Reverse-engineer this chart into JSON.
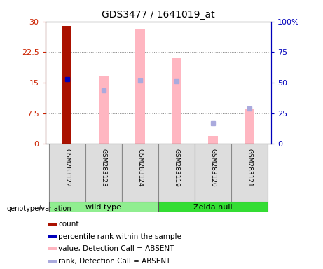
{
  "title": "GDS3477 / 1641019_at",
  "samples": [
    "GSM283122",
    "GSM283123",
    "GSM283124",
    "GSM283119",
    "GSM283120",
    "GSM283121"
  ],
  "groups": [
    {
      "name": "wild type",
      "color": "#90EE90",
      "indices": [
        0,
        1,
        2
      ]
    },
    {
      "name": "Zelda null",
      "color": "#33DD33",
      "indices": [
        3,
        4,
        5
      ]
    }
  ],
  "count_vals": [
    29,
    null,
    null,
    null,
    null,
    null
  ],
  "percentile_rank_vals": [
    53,
    null,
    null,
    null,
    null,
    null
  ],
  "value_absent": [
    null,
    16.5,
    28.0,
    21.0,
    2.0,
    8.5
  ],
  "rank_absent_right": [
    null,
    44,
    52,
    51,
    17,
    29
  ],
  "ylim_left": [
    0,
    30
  ],
  "ylim_right": [
    0,
    100
  ],
  "yticks_left": [
    0,
    7.5,
    15,
    22.5,
    30
  ],
  "yticks_right": [
    0,
    25,
    50,
    75,
    100
  ],
  "ytick_labels_left": [
    "0",
    "7.5",
    "15",
    "22.5",
    "30"
  ],
  "ytick_labels_right": [
    "0",
    "25",
    "50",
    "75",
    "100%"
  ],
  "left_axis_color": "#CC2200",
  "right_axis_color": "#0000BB",
  "colors": {
    "count": "#AA1100",
    "percentile_rank": "#0000BB",
    "value_absent": "#FFB6C1",
    "rank_absent": "#AAAADD"
  },
  "legend_items": [
    {
      "label": "count",
      "color": "#AA1100"
    },
    {
      "label": "percentile rank within the sample",
      "color": "#0000BB"
    },
    {
      "label": "value, Detection Call = ABSENT",
      "color": "#FFB6C1"
    },
    {
      "label": "rank, Detection Call = ABSENT",
      "color": "#AAAADD"
    }
  ],
  "genotype_label": "genotype/variation",
  "grid_color": "#888888",
  "background_color": "#FFFFFF"
}
